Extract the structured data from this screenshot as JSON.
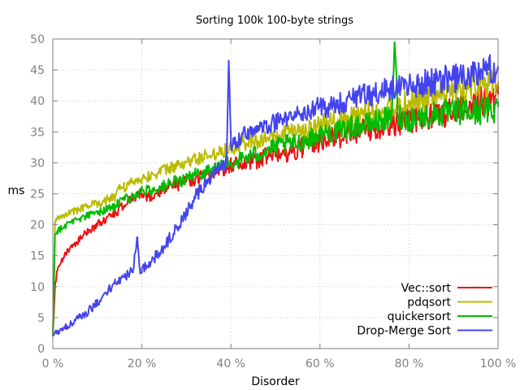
{
  "chart_data": {
    "type": "line",
    "title": "Sorting 100k 100-byte strings",
    "xlabel": "Disorder",
    "ylabel": "ms",
    "xlim": [
      0,
      100
    ],
    "ylim": [
      0,
      50
    ],
    "x_ticks": [
      0,
      20,
      40,
      60,
      80,
      100
    ],
    "x_tick_labels": [
      "0 %",
      "20 %",
      "40 %",
      "60 %",
      "80 %",
      "100 %"
    ],
    "y_ticks": [
      0,
      5,
      10,
      15,
      20,
      25,
      30,
      35,
      40,
      45,
      50
    ],
    "y_tick_labels": [
      "0",
      "5",
      "10",
      "15",
      "20",
      "25",
      "30",
      "35",
      "40",
      "45",
      "50"
    ],
    "grid": true,
    "legend_position": "bottom-right",
    "series": [
      {
        "name": "Vec::sort",
        "color": "#ee1111",
        "x": [
          0,
          0.5,
          1,
          2,
          3,
          4,
          5,
          6,
          7,
          8,
          10,
          12,
          14,
          16,
          18,
          20,
          22,
          24,
          26,
          28,
          30,
          32,
          34,
          36,
          38,
          40,
          42,
          44,
          46,
          48,
          50,
          52,
          54,
          56,
          58,
          60,
          62,
          64,
          66,
          68,
          70,
          72,
          74,
          76,
          78,
          80,
          82,
          84,
          86,
          88,
          90,
          92,
          94,
          96,
          98,
          100
        ],
        "y": [
          2,
          10,
          12.5,
          14,
          15.5,
          16.5,
          17,
          17.5,
          18.5,
          19,
          20,
          21,
          22,
          23,
          24.5,
          25,
          24.5,
          25.5,
          26,
          26.5,
          27,
          27.5,
          28,
          28.5,
          29,
          29.5,
          30,
          30,
          30.5,
          31,
          31,
          31.5,
          32,
          32.5,
          33,
          33.5,
          34,
          34,
          34.5,
          35,
          35.5,
          35.5,
          36,
          36,
          36.5,
          37,
          37,
          37.5,
          38,
          38,
          38.5,
          39,
          39.5,
          40,
          40,
          41
        ]
      },
      {
        "name": "pdqsort",
        "color": "#bbbb00",
        "x": [
          0,
          0.5,
          1,
          2,
          4,
          6,
          8,
          10,
          12,
          14,
          15,
          16,
          18,
          20,
          22,
          24,
          26,
          28,
          30,
          32,
          34,
          36,
          38,
          40,
          42,
          44,
          46,
          48,
          50,
          52,
          54,
          56,
          58,
          60,
          62,
          64,
          66,
          68,
          70,
          72,
          74,
          76,
          78,
          80,
          82,
          84,
          86,
          88,
          90,
          92,
          94,
          96,
          98,
          100
        ],
        "y": [
          2,
          20.5,
          21,
          21.5,
          22,
          22.5,
          23,
          23.5,
          24,
          24.5,
          26.5,
          26,
          27,
          27.5,
          28,
          28.5,
          29,
          29.5,
          30,
          30.5,
          31,
          31.5,
          32,
          32.5,
          33,
          33.5,
          33.5,
          34,
          34,
          34.5,
          35,
          35,
          35.5,
          36,
          36.5,
          37,
          37,
          37.5,
          38,
          38,
          38.5,
          39,
          39.5,
          40,
          40,
          40.5,
          41,
          41,
          41.5,
          42,
          42,
          42.5,
          42.5,
          43
        ]
      },
      {
        "name": "quickersort",
        "color": "#00bb00",
        "x": [
          0,
          0.5,
          1,
          2,
          4,
          6,
          8,
          10,
          12,
          14,
          16,
          18,
          20,
          22,
          24,
          26,
          28,
          30,
          32,
          34,
          36,
          38,
          40,
          42,
          44,
          46,
          48,
          50,
          52,
          54,
          56,
          58,
          60,
          62,
          64,
          66,
          68,
          70,
          72,
          74,
          76,
          76.8,
          77.5,
          78,
          80,
          82,
          84,
          86,
          88,
          90,
          92,
          94,
          96,
          98,
          100
        ],
        "y": [
          2,
          18.5,
          19,
          19.5,
          20.5,
          21,
          21.5,
          22,
          22.5,
          23,
          24,
          24.5,
          25.5,
          25.5,
          26,
          26.5,
          27,
          27.5,
          28,
          28.5,
          29,
          29.5,
          30,
          30.5,
          31,
          31.5,
          32,
          32.5,
          33,
          33,
          33.5,
          34,
          34.5,
          35,
          35,
          35.5,
          36,
          36,
          36.5,
          37,
          37,
          49,
          37.5,
          37.5,
          37,
          37.5,
          37.5,
          38,
          38,
          38,
          38.5,
          38,
          38.5,
          38.5,
          39
        ]
      },
      {
        "name": "Drop-Merge Sort",
        "color": "#4444ee",
        "x": [
          0,
          0.5,
          2,
          4,
          6,
          8,
          10,
          12,
          14,
          16,
          18,
          19,
          19.5,
          20,
          22,
          24,
          26,
          28,
          30,
          32,
          34,
          36,
          38,
          39,
          39.5,
          40,
          42,
          44,
          46,
          48,
          50,
          52,
          54,
          56,
          58,
          60,
          62,
          64,
          66,
          68,
          70,
          72,
          74,
          76,
          78,
          80,
          82,
          84,
          86,
          88,
          90,
          92,
          94,
          96,
          98,
          100
        ],
        "y": [
          2,
          2.5,
          3,
          4,
          5,
          6,
          7.5,
          9,
          10.5,
          11.5,
          12.5,
          18,
          13,
          13,
          14,
          15.5,
          17.5,
          19.5,
          22,
          24.5,
          26.5,
          28,
          29.5,
          30,
          46.5,
          33,
          34,
          35,
          35.5,
          36,
          36.5,
          37,
          37.5,
          38,
          38.5,
          39,
          39,
          39.5,
          40,
          40.5,
          41,
          41,
          41.5,
          42,
          42,
          42.5,
          42.5,
          43,
          43,
          43.5,
          43.5,
          44,
          44,
          44.5,
          45,
          45
        ]
      }
    ]
  }
}
